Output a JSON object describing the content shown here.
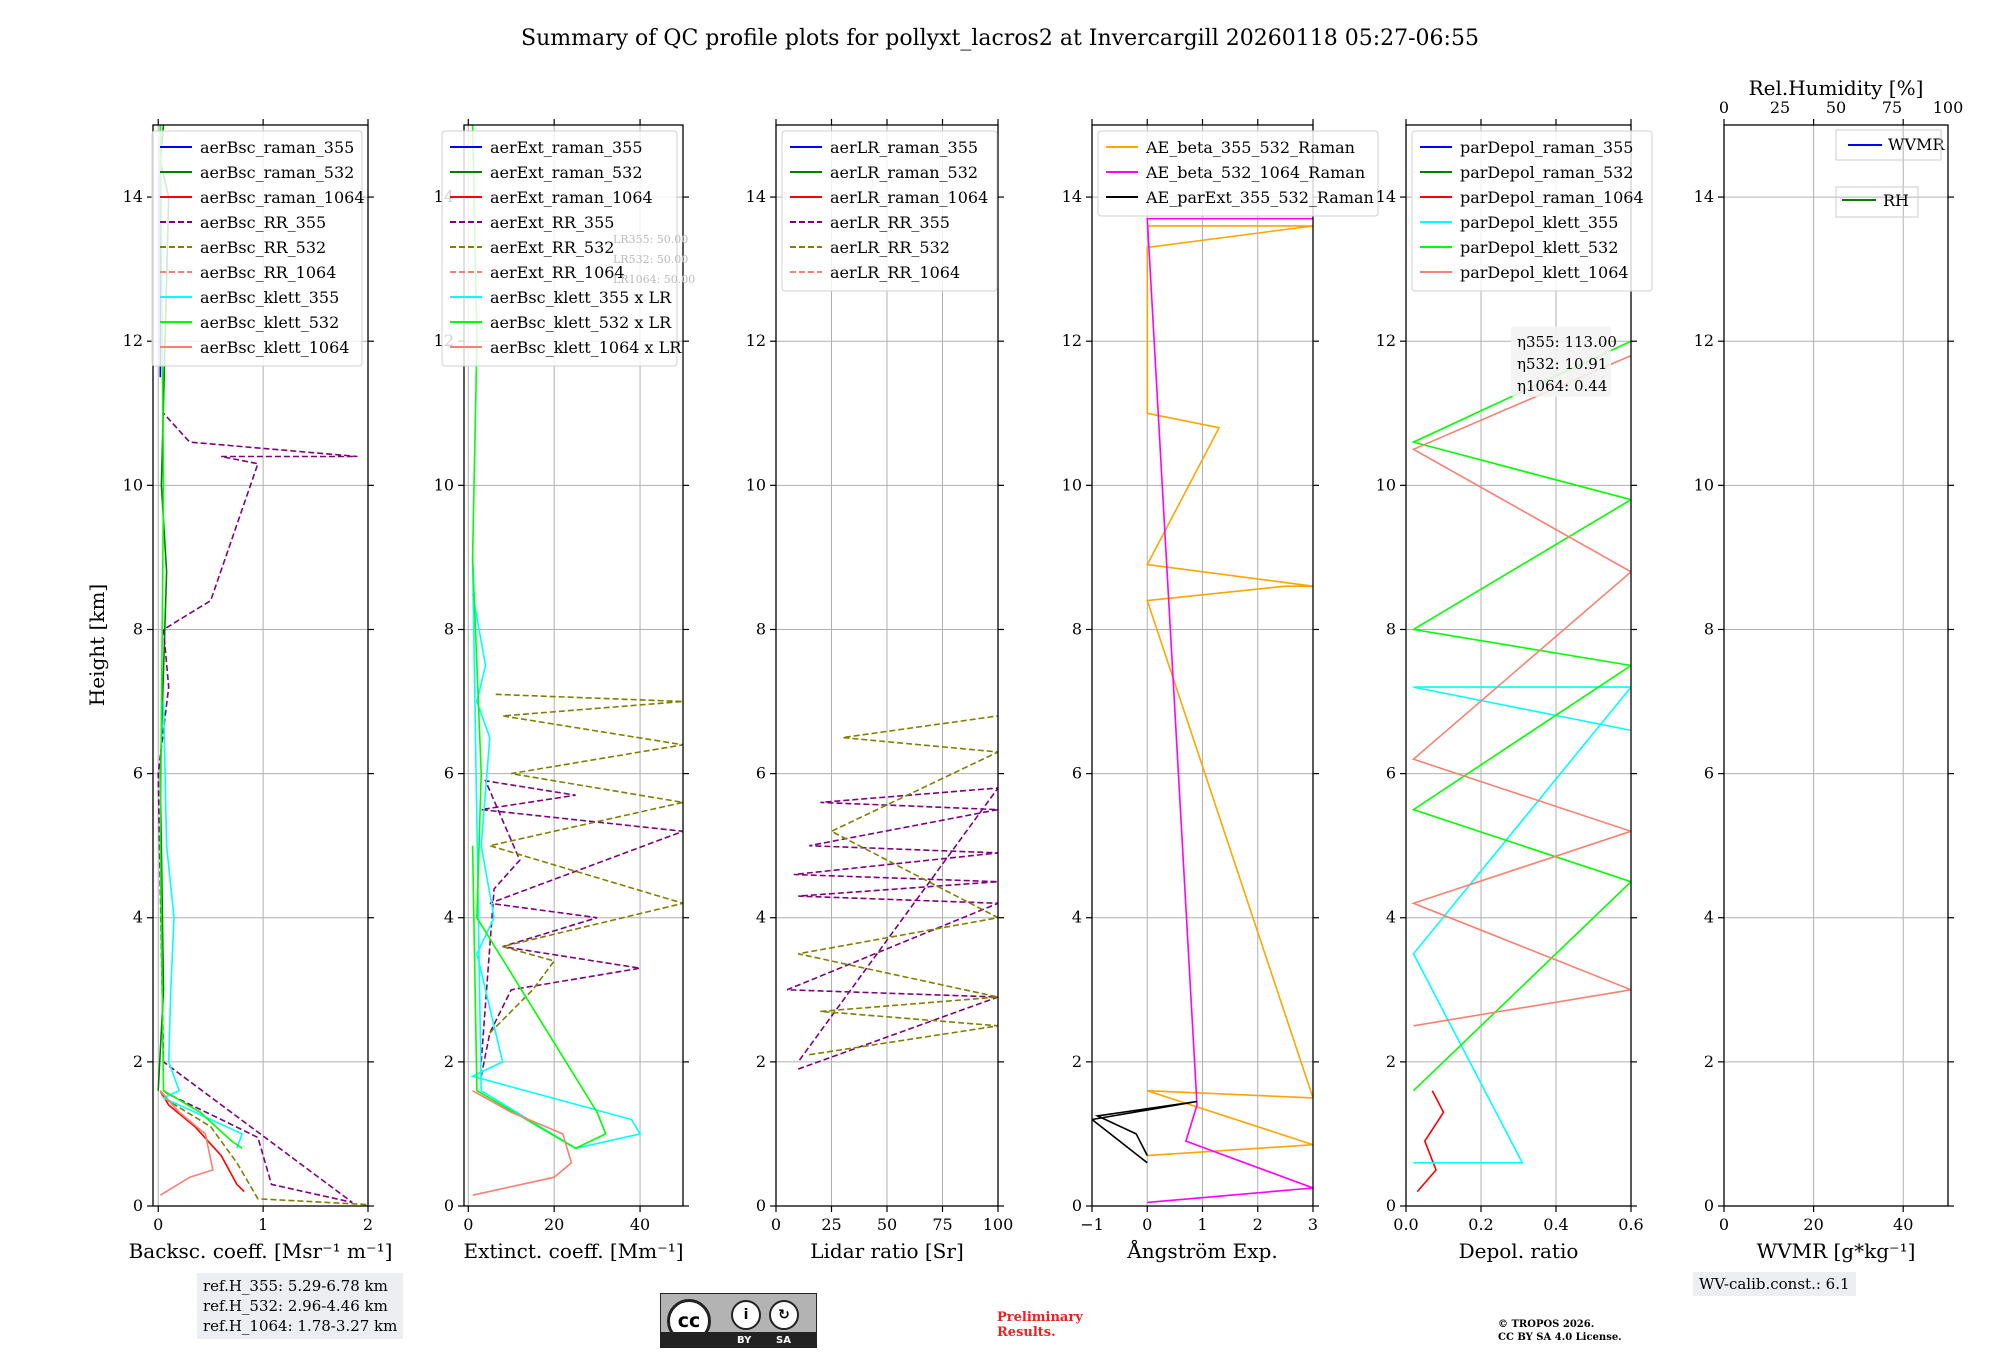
{
  "title": "Summary of QC profile plots for pollyxt_lacros2 at Invercargill 20260118 05:27-06:55",
  "ylabel": "Height [km]",
  "ref_lines": [
    "ref.H_355: 5.29-6.78 km",
    "ref.H_532: 2.96-4.46 km",
    "ref.H_1064: 1.78-3.27 km"
  ],
  "wv_calib": "WV-calib.const.: 6.1",
  "preliminary": [
    "Preliminary",
    "Results."
  ],
  "copyright": [
    "© TROPOS 2026.",
    "CC BY SA 4.0 License."
  ],
  "license_badge": {
    "by": "BY",
    "sa": "SA"
  },
  "colors": {
    "blue": "#0000ff",
    "green": "#008000",
    "red": "#ff0000",
    "purple": "#800080",
    "olive": "#808000",
    "salmon": "#fa8072",
    "cyan": "#00ffff",
    "lime": "#00ff00",
    "orange": "#ffa500",
    "magenta": "#ff00ff",
    "black": "#000000"
  },
  "chart_data": [
    {
      "type": "line",
      "xlabel": "Backsc. coeff. [Msr⁻¹ m⁻¹]",
      "xlim": [
        -0.05,
        2.0
      ],
      "ylim": [
        0,
        15
      ],
      "xticks": [
        0,
        1,
        2
      ],
      "yticks": [
        0,
        2,
        4,
        6,
        8,
        10,
        12,
        14
      ],
      "grid": true,
      "legend": "top-right",
      "series": [
        {
          "name": "aerBsc_raman_355",
          "color": "blue",
          "dash": false,
          "x": [
            0.02,
            0.02
          ],
          "y": [
            11.5,
            15
          ]
        },
        {
          "name": "aerBsc_raman_532",
          "color": "green",
          "dash": false,
          "x": [
            0.0,
            0.05,
            0.02,
            0.08,
            0.03,
            0.1,
            0.02,
            0.05
          ],
          "y": [
            1.6,
            3,
            6,
            8.8,
            10,
            14,
            14.5,
            15
          ]
        },
        {
          "name": "aerBsc_raman_1064",
          "color": "red",
          "dash": false,
          "x": [
            0.02,
            0.1,
            0.35,
            0.6,
            0.75,
            0.82
          ],
          "y": [
            1.6,
            1.4,
            1.1,
            0.7,
            0.3,
            0.2
          ]
        },
        {
          "name": "aerBsc_RR_355",
          "color": "purple",
          "dash": true,
          "x": [
            0.05,
            0.1,
            0.6,
            0.95,
            1.08,
            1.85,
            0.05,
            0.0,
            0.1,
            0.05,
            0.5,
            0.95,
            0.6,
            1.9,
            0.3,
            0.05
          ],
          "y": [
            1.6,
            1.55,
            1.2,
            0.95,
            0.3,
            0.05,
            2,
            6,
            7.2,
            8,
            8.4,
            10.3,
            10.4,
            10.4,
            10.6,
            11
          ]
        },
        {
          "name": "aerBsc_RR_532",
          "color": "olive",
          "dash": true,
          "x": [
            0.02,
            0.05,
            0.5,
            0.75,
            0.95,
            2.0
          ],
          "y": [
            1.6,
            1.5,
            1.1,
            0.6,
            0.1,
            0.02
          ]
        },
        {
          "name": "aerBsc_RR_1064",
          "color": "salmon",
          "dash": true,
          "x": [],
          "y": []
        },
        {
          "name": "aerBsc_klett_355",
          "color": "cyan",
          "dash": false,
          "x": [
            0.05,
            0.08,
            0.15,
            0.12,
            0.1,
            0.2,
            0.05,
            0.8,
            0.75
          ],
          "y": [
            7,
            5,
            4,
            3,
            2,
            1.6,
            1.5,
            1.0,
            0.8
          ]
        },
        {
          "name": "aerBsc_klett_532",
          "color": "lime",
          "dash": false,
          "x": [
            0.02,
            0.05,
            0.02,
            0.05,
            0.4,
            0.7,
            0.8
          ],
          "y": [
            15,
            10,
            5,
            1.6,
            1.3,
            0.9,
            0.8
          ]
        },
        {
          "name": "aerBsc_klett_1064",
          "color": "salmon",
          "dash": false,
          "x": [
            0.02,
            0.2,
            0.45,
            0.52,
            0.3,
            0.02
          ],
          "y": [
            1.6,
            1.3,
            1.0,
            0.5,
            0.4,
            0.15
          ]
        }
      ]
    },
    {
      "type": "line",
      "xlabel": "Extinct. coeff. [Mm⁻¹]",
      "xlim": [
        -1,
        50
      ],
      "ylim": [
        0,
        15
      ],
      "xticks": [
        0,
        20,
        40
      ],
      "yticks": [
        0,
        2,
        4,
        6,
        8,
        10,
        12,
        14
      ],
      "grid": true,
      "legend": "top-right",
      "lr_labels": [
        "LR355: 50.00",
        "LR532: 50.00",
        "LR1064: 50.00"
      ],
      "series": [
        {
          "name": "aerExt_raman_355",
          "color": "blue",
          "dash": false,
          "x": [],
          "y": []
        },
        {
          "name": "aerExt_raman_532",
          "color": "green",
          "dash": false,
          "x": [],
          "y": []
        },
        {
          "name": "aerExt_raman_1064",
          "color": "red",
          "dash": false,
          "x": [],
          "y": []
        },
        {
          "name": "aerExt_RR_355",
          "color": "purple",
          "dash": true,
          "x": [
            3,
            5,
            10,
            40,
            8,
            30,
            5,
            50,
            3,
            25,
            4,
            12,
            6,
            3
          ],
          "y": [
            1.8,
            2.4,
            3.0,
            3.3,
            3.6,
            4.0,
            4.2,
            5.2,
            5.5,
            5.7,
            5.9,
            4.8,
            4.4,
            2.0
          ]
        },
        {
          "name": "aerExt_RR_532",
          "color": "olive",
          "dash": true,
          "x": [
            5,
            15,
            20,
            8,
            50,
            5,
            50,
            10,
            50,
            8,
            50,
            6
          ],
          "y": [
            2.4,
            3.0,
            3.4,
            3.6,
            4.2,
            5.0,
            5.6,
            6.0,
            6.4,
            6.8,
            7.0,
            7.1
          ]
        },
        {
          "name": "aerExt_RR_1064",
          "color": "salmon",
          "dash": true,
          "x": [],
          "y": []
        },
        {
          "name": "aerBsc_klett_355 x LR",
          "color": "cyan",
          "dash": false,
          "x": [
            1,
            4,
            2,
            5,
            3,
            6,
            2,
            4,
            8,
            1,
            38,
            40,
            25,
            3,
            1
          ],
          "y": [
            8.5,
            7.5,
            7,
            6.5,
            5,
            4,
            3.5,
            3,
            2,
            1.8,
            1.2,
            1.0,
            0.8,
            1.6,
            9
          ]
        },
        {
          "name": "aerBsc_klett_532 x LR",
          "color": "lime",
          "dash": false,
          "x": [
            1,
            2,
            1,
            3,
            2,
            30,
            32,
            25,
            2,
            1
          ],
          "y": [
            15,
            12,
            9,
            6,
            4,
            1.3,
            1.0,
            0.8,
            1.6,
            5
          ]
        },
        {
          "name": "aerBsc_klett_1064 x LR",
          "color": "salmon",
          "dash": false,
          "x": [
            1,
            10,
            22,
            24,
            20,
            1
          ],
          "y": [
            1.6,
            1.3,
            1.0,
            0.6,
            0.4,
            0.15
          ]
        }
      ]
    },
    {
      "type": "line",
      "xlabel": "Lidar ratio [Sr]",
      "xlim": [
        0,
        100
      ],
      "ylim": [
        0,
        15
      ],
      "xticks": [
        0,
        25,
        50,
        75,
        100
      ],
      "yticks": [
        0,
        2,
        4,
        6,
        8,
        10,
        12,
        14
      ],
      "grid": true,
      "legend": "top-left",
      "series": [
        {
          "name": "aerLR_raman_355",
          "color": "blue",
          "dash": false,
          "x": [],
          "y": []
        },
        {
          "name": "aerLR_raman_532",
          "color": "green",
          "dash": false,
          "x": [],
          "y": []
        },
        {
          "name": "aerLR_raman_1064",
          "color": "red",
          "dash": false,
          "x": [],
          "y": []
        },
        {
          "name": "aerLR_RR_355",
          "color": "purple",
          "dash": true,
          "x": [
            10,
            100,
            5,
            100,
            10,
            100,
            8,
            100,
            15,
            100,
            20,
            100,
            10
          ],
          "y": [
            1.9,
            2.9,
            3.0,
            4.2,
            4.3,
            4.5,
            4.6,
            4.9,
            5.0,
            5.5,
            5.6,
            5.8,
            2.0
          ]
        },
        {
          "name": "aerLR_RR_532",
          "color": "olive",
          "dash": true,
          "x": [
            15,
            100,
            20,
            100,
            10,
            100,
            25,
            100,
            30,
            100,
            100
          ],
          "y": [
            2.1,
            2.5,
            2.7,
            2.9,
            3.5,
            4.0,
            5.2,
            6.3,
            6.5,
            6.8,
            6.8
          ]
        },
        {
          "name": "aerLR_RR_1064",
          "color": "salmon",
          "dash": true,
          "x": [],
          "y": []
        }
      ]
    },
    {
      "type": "line",
      "xlabel": "Ångström Exp.",
      "xlim": [
        -1,
        3
      ],
      "ylim": [
        0,
        15
      ],
      "xticks": [
        -1,
        0,
        1,
        2,
        3
      ],
      "yticks": [
        0,
        2,
        4,
        6,
        8,
        10,
        12,
        14
      ],
      "grid": true,
      "legend": "top-left",
      "series": [
        {
          "name": "AE_beta_355_532_Raman",
          "color": "orange",
          "dash": false,
          "x": [
            0,
            3,
            0,
            3,
            0,
            2.5,
            3,
            0,
            1.3,
            0,
            0,
            3,
            0
          ],
          "y": [
            0.7,
            0.85,
            1.6,
            1.5,
            8.4,
            8.6,
            8.6,
            8.9,
            10.8,
            11.0,
            13.3,
            13.6,
            13.6
          ]
        },
        {
          "name": "AE_beta_532_1064_Raman",
          "color": "magenta",
          "dash": false,
          "x": [
            0,
            3,
            0.7,
            0.9,
            0,
            3
          ],
          "y": [
            0.05,
            0.25,
            0.9,
            1.4,
            13.7,
            13.7
          ]
        },
        {
          "name": "AE_parExt_355_532_Raman",
          "color": "black",
          "dash": false,
          "x": [
            0,
            -1,
            0.9,
            -0.9,
            -0.2,
            0
          ],
          "y": [
            0.6,
            1.2,
            1.45,
            1.25,
            1.0,
            0.7
          ]
        }
      ]
    },
    {
      "type": "line",
      "xlabel": "Depol. ratio",
      "xlim": [
        0,
        0.6
      ],
      "ylim": [
        0,
        15
      ],
      "xticks": [
        0.0,
        0.2,
        0.4,
        0.6
      ],
      "yticks": [
        0,
        2,
        4,
        6,
        8,
        10,
        12,
        14
      ],
      "grid": true,
      "legend": "top-left",
      "eta_labels": [
        "η355: 113.00",
        "η532: 10.91",
        "η1064: 0.44"
      ],
      "series": [
        {
          "name": "parDepol_raman_355",
          "color": "blue",
          "dash": false,
          "x": [],
          "y": []
        },
        {
          "name": "parDepol_raman_532",
          "color": "green",
          "dash": false,
          "x": [],
          "y": []
        },
        {
          "name": "parDepol_raman_1064",
          "color": "red",
          "dash": false,
          "x": [
            0.03,
            0.08,
            0.05,
            0.1,
            0.07
          ],
          "y": [
            0.2,
            0.5,
            0.9,
            1.3,
            1.6
          ]
        },
        {
          "name": "parDepol_klett_355",
          "color": "cyan",
          "dash": false,
          "x": [
            0.02,
            0.31,
            0.02,
            0.6,
            0.02,
            0.6
          ],
          "y": [
            0.6,
            0.6,
            3.5,
            7.2,
            7.2,
            6.6
          ]
        },
        {
          "name": "parDepol_klett_532",
          "color": "lime",
          "dash": false,
          "x": [
            0.02,
            0.6,
            0.02,
            0.6,
            0.02,
            0.6,
            0.02,
            0.6
          ],
          "y": [
            1.6,
            4.5,
            5.5,
            7.5,
            8.0,
            9.8,
            10.6,
            12.0
          ]
        },
        {
          "name": "parDepol_klett_1064",
          "color": "salmon",
          "dash": false,
          "x": [
            0.02,
            0.6,
            0.02,
            0.6,
            0.02,
            0.6,
            0.02,
            0.6
          ],
          "y": [
            2.5,
            3.0,
            4.2,
            5.2,
            6.2,
            8.8,
            10.5,
            11.8
          ]
        }
      ]
    },
    {
      "type": "line",
      "xlabel": "WVMR [g*kg⁻¹]",
      "top_xlabel": "Rel.Humidity [%]",
      "xlim": [
        0,
        50
      ],
      "ylim": [
        0,
        15
      ],
      "xticks": [
        0,
        20,
        40
      ],
      "top_xticks": [
        0,
        25,
        50,
        75,
        100
      ],
      "yticks": [
        0,
        2,
        4,
        6,
        8,
        10,
        12,
        14
      ],
      "grid": true,
      "legend": "top-right",
      "series": [
        {
          "name": "WVMR",
          "color": "blue",
          "dash": false,
          "x": [],
          "y": []
        },
        {
          "name": "RH",
          "color": "green",
          "dash": false,
          "x": [],
          "y": []
        }
      ]
    }
  ]
}
